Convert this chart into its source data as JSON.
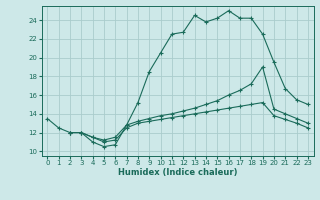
{
  "xlabel": "Humidex (Indice chaleur)",
  "background_color": "#cde8e8",
  "grid_color": "#aacccc",
  "line_color": "#1a6b5a",
  "xlim": [
    -0.5,
    23.5
  ],
  "ylim": [
    9.5,
    25.5
  ],
  "xticks": [
    0,
    1,
    2,
    3,
    4,
    5,
    6,
    7,
    8,
    9,
    10,
    11,
    12,
    13,
    14,
    15,
    16,
    17,
    18,
    19,
    20,
    21,
    22,
    23
  ],
  "yticks": [
    10,
    12,
    14,
    16,
    18,
    20,
    22,
    24
  ],
  "lines": [
    {
      "x": [
        0,
        1,
        2,
        3,
        4,
        5,
        6,
        7,
        8,
        9,
        10,
        11,
        12,
        13,
        14,
        15,
        16,
        17,
        18,
        19,
        20,
        21,
        22,
        23
      ],
      "y": [
        13.5,
        12.5,
        12.0,
        12.0,
        11.0,
        10.5,
        10.7,
        12.8,
        15.2,
        18.5,
        20.5,
        22.5,
        22.7,
        24.5,
        23.8,
        24.2,
        25.0,
        24.2,
        24.2,
        22.5,
        19.5,
        16.7,
        15.5,
        15.0
      ]
    },
    {
      "x": [
        2,
        3,
        4,
        5,
        6,
        7,
        8,
        9,
        10,
        11,
        12,
        13,
        14,
        15,
        16,
        17,
        18,
        19,
        20,
        21,
        22,
        23
      ],
      "y": [
        12.0,
        12.0,
        11.5,
        11.2,
        11.5,
        12.8,
        13.2,
        13.5,
        13.8,
        14.0,
        14.3,
        14.6,
        15.0,
        15.4,
        16.0,
        16.5,
        17.2,
        19.0,
        14.5,
        14.0,
        13.5,
        13.0
      ]
    },
    {
      "x": [
        2,
        3,
        4,
        5,
        6,
        7,
        8,
        9,
        10,
        11,
        12,
        13,
        14,
        15,
        16,
        17,
        18,
        19,
        20,
        21,
        22,
        23
      ],
      "y": [
        12.0,
        12.0,
        11.5,
        11.0,
        11.2,
        12.5,
        13.0,
        13.2,
        13.4,
        13.6,
        13.8,
        14.0,
        14.2,
        14.4,
        14.6,
        14.8,
        15.0,
        15.2,
        13.8,
        13.4,
        13.0,
        12.5
      ]
    }
  ]
}
